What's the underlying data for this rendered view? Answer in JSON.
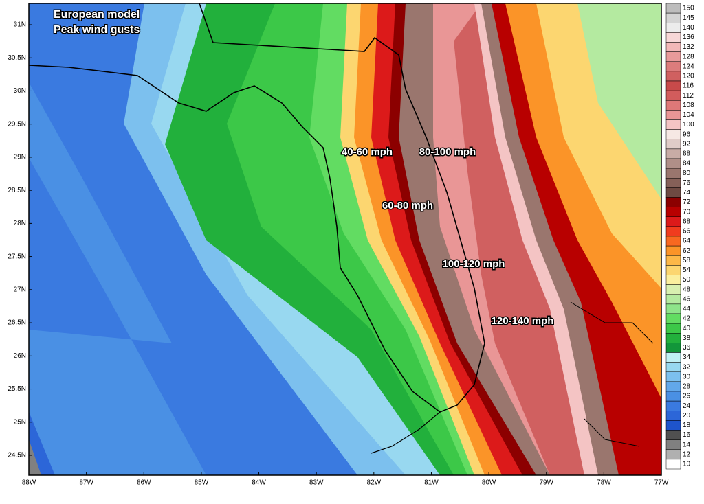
{
  "title_lines": [
    "European model",
    "Peak wind gusts"
  ],
  "annotations": [
    "40-60 mph",
    "80-100 mph",
    "60-80 mph",
    "100-120 mph",
    "120-140 mph"
  ],
  "latitude_labels": [
    "31N",
    "30.5N",
    "30N",
    "29.5N",
    "29N",
    "28.5N",
    "28N",
    "27.5N",
    "27N",
    "26.5N",
    "26N",
    "25.5N",
    "25N",
    "24.5N"
  ],
  "longitude_labels": [
    "88W",
    "87W",
    "86W",
    "85W",
    "84W",
    "83W",
    "82W",
    "81W",
    "80W",
    "79W",
    "78W",
    "77W"
  ],
  "legend": {
    "levels": [
      {
        "value": 150,
        "color": "#bdbdbd"
      },
      {
        "value": 145,
        "color": "#d4d4d4"
      },
      {
        "value": 140,
        "color": "#ececec"
      },
      {
        "value": 136,
        "color": "#f7d7d7"
      },
      {
        "value": 132,
        "color": "#f2b8b8"
      },
      {
        "value": 128,
        "color": "#e89a9a"
      },
      {
        "value": 124,
        "color": "#dc7c7c"
      },
      {
        "value": 120,
        "color": "#d06060"
      },
      {
        "value": 116,
        "color": "#c84a4a"
      },
      {
        "value": 112,
        "color": "#d25c5c"
      },
      {
        "value": 108,
        "color": "#de7878"
      },
      {
        "value": 104,
        "color": "#e99696"
      },
      {
        "value": 100,
        "color": "#f4c4c4"
      },
      {
        "value": 96,
        "color": "#f6e8e4"
      },
      {
        "value": 92,
        "color": "#e0ccc8"
      },
      {
        "value": 88,
        "color": "#c8aca6"
      },
      {
        "value": 84,
        "color": "#b08f88"
      },
      {
        "value": 80,
        "color": "#9a766e"
      },
      {
        "value": 76,
        "color": "#856058"
      },
      {
        "value": 74,
        "color": "#6e4a42"
      },
      {
        "value": 72,
        "color": "#8c0000"
      },
      {
        "value": 70,
        "color": "#b80000"
      },
      {
        "value": 68,
        "color": "#dc1a1a"
      },
      {
        "value": 66,
        "color": "#f03c1e"
      },
      {
        "value": 64,
        "color": "#f86820"
      },
      {
        "value": 62,
        "color": "#fb9428"
      },
      {
        "value": 58,
        "color": "#fcb848"
      },
      {
        "value": 54,
        "color": "#fcd670"
      },
      {
        "value": 50,
        "color": "#fbef9e"
      },
      {
        "value": 48,
        "color": "#d8f0b0"
      },
      {
        "value": 46,
        "color": "#b4eaa0"
      },
      {
        "value": 44,
        "color": "#8ee48a"
      },
      {
        "value": 42,
        "color": "#62dc62"
      },
      {
        "value": 40,
        "color": "#3cc848"
      },
      {
        "value": 38,
        "color": "#22b03c"
      },
      {
        "value": 36,
        "color": "#12963a"
      },
      {
        "value": 34,
        "color": "#c0f0f4"
      },
      {
        "value": 32,
        "color": "#98d8f0"
      },
      {
        "value": 30,
        "color": "#7cc0ee"
      },
      {
        "value": 28,
        "color": "#62a8ea"
      },
      {
        "value": 26,
        "color": "#4a90e4"
      },
      {
        "value": 24,
        "color": "#3a7ae0"
      },
      {
        "value": 20,
        "color": "#2c66d8"
      },
      {
        "value": 18,
        "color": "#1e54cc"
      },
      {
        "value": 16,
        "color": "#505050"
      },
      {
        "value": 14,
        "color": "#808080"
      },
      {
        "value": 12,
        "color": "#b0b0b0"
      },
      {
        "value": 10,
        "color": "#ffffff"
      }
    ]
  }
}
